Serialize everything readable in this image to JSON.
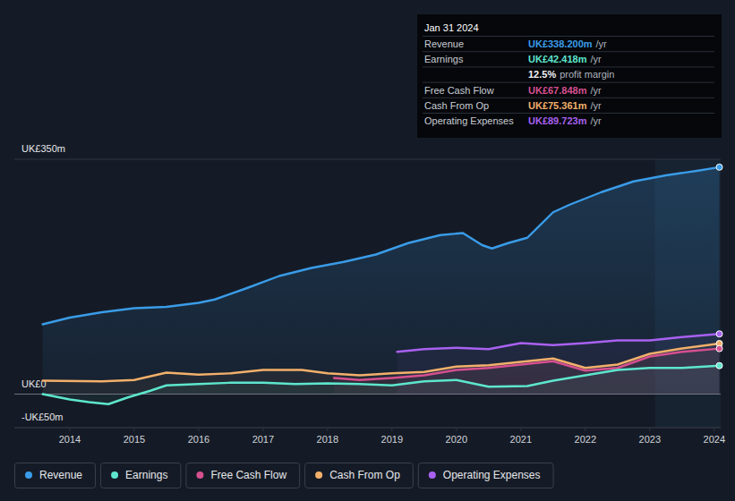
{
  "chart_data": {
    "type": "line",
    "xlim": [
      2013.14,
      2024.1
    ],
    "xticks": [
      2014,
      2015,
      2016,
      2017,
      2018,
      2019,
      2020,
      2021,
      2022,
      2023,
      2024
    ],
    "ylim": [
      -50,
      350
    ],
    "yticks": [
      {
        "value": -50,
        "label": "-UK£50m"
      },
      {
        "value": 0,
        "label": "UK£0"
      },
      {
        "value": 350,
        "label": "UK£350m"
      }
    ],
    "grid": true,
    "legend": "bottom",
    "series": [
      {
        "name": "Revenue",
        "color": "#3a9ce8",
        "x": [
          2013.58,
          2014.0,
          2014.5,
          2015.0,
          2015.5,
          2016.0,
          2016.25,
          2016.75,
          2017.25,
          2017.75,
          2018.25,
          2018.75,
          2019.25,
          2019.75,
          2020.1,
          2020.4,
          2020.55,
          2020.8,
          2021.1,
          2021.5,
          2021.75,
          2022.25,
          2022.75,
          2023.25,
          2023.75,
          2024.08
        ],
        "values": [
          104,
          114,
          122,
          128,
          130,
          136,
          141,
          158,
          176,
          188,
          197,
          208,
          225,
          237,
          240,
          222,
          217,
          225,
          233,
          271,
          282,
          301,
          317,
          326,
          333,
          338.2
        ]
      },
      {
        "name": "Earnings",
        "color": "#5ee6cd",
        "x": [
          2013.58,
          2014.0,
          2014.3,
          2014.6,
          2014.9,
          2015.25,
          2015.5,
          2016.0,
          2016.5,
          2017.0,
          2017.5,
          2018.0,
          2018.5,
          2019.0,
          2019.5,
          2020.0,
          2020.5,
          2021.1,
          2021.5,
          2022.0,
          2022.5,
          2023.0,
          2023.5,
          2024.08
        ],
        "values": [
          0,
          -8,
          -12,
          -15,
          -5,
          5,
          13,
          15,
          17,
          17,
          15,
          16,
          15,
          13,
          19,
          21,
          11,
          12,
          20,
          28,
          36,
          39,
          39,
          42.4
        ]
      },
      {
        "name": "Free Cash Flow",
        "color": "#d6508f",
        "x": [
          2018.1,
          2018.5,
          2019.0,
          2019.5,
          2020.0,
          2020.5,
          2021.0,
          2021.5,
          2022.0,
          2022.5,
          2023.0,
          2023.5,
          2024.08
        ],
        "values": [
          24,
          21,
          24,
          28,
          36,
          39,
          44,
          49,
          35,
          39,
          56,
          63,
          67.8
        ]
      },
      {
        "name": "Cash From Op",
        "color": "#f3b06b",
        "x": [
          2013.58,
          2014.5,
          2015.0,
          2015.5,
          2016.0,
          2016.5,
          2017.0,
          2017.6,
          2018.0,
          2018.5,
          2019.0,
          2019.5,
          2020.0,
          2020.5,
          2021.0,
          2021.5,
          2022.0,
          2022.5,
          2023.0,
          2023.5,
          2024.08
        ],
        "values": [
          20,
          19,
          21,
          32,
          29,
          31,
          36,
          36,
          31,
          28,
          31,
          33,
          41,
          43,
          48,
          53,
          39,
          44,
          60,
          68,
          75.4
        ]
      },
      {
        "name": "Operating Expenses",
        "color": "#a961f0",
        "x": [
          2019.08,
          2019.5,
          2020.0,
          2020.5,
          2021.0,
          2021.5,
          2022.0,
          2022.5,
          2023.0,
          2023.5,
          2024.08
        ],
        "values": [
          63,
          67,
          69,
          67,
          76,
          73,
          76,
          80,
          80,
          85,
          89.7
        ]
      }
    ],
    "annotations": {
      "title": "Jan 31 2024",
      "rows": [
        {
          "label": "Revenue",
          "value": "UK£338.200m",
          "unit": "/yr"
        },
        {
          "label": "Earnings",
          "value": "UK£42.418m",
          "unit": "/yr"
        },
        {
          "value": "12.5%",
          "unit": "profit margin"
        },
        {
          "label": "Free Cash Flow",
          "value": "UK£67.848m",
          "unit": "/yr"
        },
        {
          "label": "Cash From Op",
          "value": "UK£75.361m",
          "unit": "/yr"
        },
        {
          "label": "Operating Expenses",
          "value": "UK£89.723m",
          "unit": "/yr"
        }
      ]
    }
  }
}
